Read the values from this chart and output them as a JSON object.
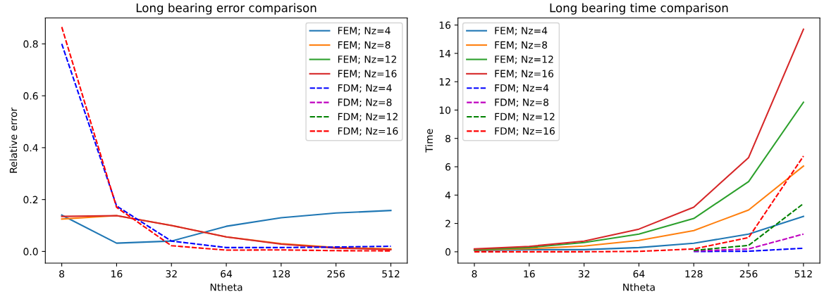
{
  "chart_data": [
    {
      "type": "line",
      "title": "Long bearing error comparison",
      "xlabel": "Ntheta",
      "ylabel": "Relative error",
      "x": [
        8,
        16,
        32,
        64,
        128,
        256,
        512
      ],
      "log": "x",
      "xlim": [
        6.5,
        630
      ],
      "xticks": [
        8,
        16,
        32,
        64,
        128,
        256,
        512
      ],
      "ylim": [
        -0.045,
        0.9
      ],
      "yticks": [
        {
          "value": 0,
          "label": "0.0"
        },
        0.2,
        0.4,
        0.6,
        0.8
      ],
      "legend": "top right",
      "grid": false,
      "series": [
        {
          "name": "FEM; Nz=4",
          "color": "#1f77b4",
          "line_style": "solid",
          "values": [
            0.14,
            0.032,
            0.04,
            0.097,
            0.13,
            0.148,
            0.158
          ]
        },
        {
          "name": "FEM; Nz=8",
          "color": "#ff7f0e",
          "line_style": "solid",
          "values": [
            0.125,
            0.138,
            0.1,
            0.056,
            0.03,
            0.015,
            0.01
          ]
        },
        {
          "name": "FEM; Nz=12",
          "color": "#2ca02c",
          "line_style": "solid",
          "values": [
            null,
            null,
            null,
            null,
            null,
            null,
            null
          ]
        },
        {
          "name": "FEM; Nz=16",
          "color": "#d62728",
          "line_style": "solid",
          "values": [
            0.135,
            0.138,
            0.1,
            0.056,
            0.028,
            0.013,
            0.007
          ]
        },
        {
          "name": "FDM; Nz=4",
          "color": "#0000ff",
          "line_style": "dashed",
          "values": [
            0.8,
            0.175,
            0.04,
            0.015,
            0.015,
            0.017,
            0.02
          ]
        },
        {
          "name": "FDM; Nz=8",
          "color": "#bf00bf",
          "line_style": "dashed",
          "values": [
            null,
            null,
            null,
            null,
            null,
            null,
            null
          ]
        },
        {
          "name": "FDM; Nz=12",
          "color": "#008000",
          "line_style": "dashed",
          "values": [
            null,
            null,
            null,
            null,
            null,
            null,
            null
          ]
        },
        {
          "name": "FDM; Nz=16",
          "color": "#ff0000",
          "line_style": "dashed",
          "values": [
            0.865,
            0.17,
            0.022,
            0.005,
            0.006,
            0.003,
            0.002
          ]
        }
      ]
    },
    {
      "type": "line",
      "title": "Long bearing time comparison",
      "xlabel": "Ntheta",
      "ylabel": "Time",
      "x": [
        8,
        16,
        32,
        64,
        128,
        256,
        512
      ],
      "log": "x",
      "xlim": [
        6.5,
        630
      ],
      "xticks": [
        8,
        16,
        32,
        64,
        128,
        256,
        512
      ],
      "ylim": [
        -0.8,
        16.5
      ],
      "yticks": [
        0,
        2,
        4,
        6,
        8,
        10,
        12,
        14,
        16
      ],
      "legend": "top left",
      "grid": false,
      "series": [
        {
          "name": "FEM; Nz=4",
          "color": "#1f77b4",
          "line_style": "solid",
          "values": [
            0.08,
            0.15,
            0.15,
            0.3,
            0.6,
            1.25,
            2.5
          ]
        },
        {
          "name": "FEM; Nz=8",
          "color": "#ff7f0e",
          "line_style": "solid",
          "values": [
            0.12,
            0.22,
            0.4,
            0.8,
            1.5,
            2.95,
            6.05
          ]
        },
        {
          "name": "FEM; Nz=12",
          "color": "#2ca02c",
          "line_style": "solid",
          "values": [
            0.15,
            0.3,
            0.65,
            1.25,
            2.35,
            4.95,
            10.55
          ]
        },
        {
          "name": "FEM; Nz=16",
          "color": "#d62728",
          "line_style": "solid",
          "values": [
            0.2,
            0.38,
            0.75,
            1.6,
            3.15,
            6.65,
            15.7
          ]
        },
        {
          "name": "FDM; Nz=4",
          "color": "#0000ff",
          "line_style": "dashed",
          "values": [
            null,
            null,
            null,
            null,
            0.02,
            0.04,
            0.25
          ]
        },
        {
          "name": "FDM; Nz=8",
          "color": "#bf00bf",
          "line_style": "dashed",
          "values": [
            null,
            null,
            null,
            null,
            0.05,
            0.2,
            1.25
          ]
        },
        {
          "name": "FDM; Nz=12",
          "color": "#008000",
          "line_style": "dashed",
          "values": [
            null,
            null,
            null,
            null,
            0.1,
            0.45,
            3.4
          ]
        },
        {
          "name": "FDM; Nz=16",
          "color": "#ff0000",
          "line_style": "dashed",
          "values": [
            0,
            0,
            0,
            0.03,
            0.2,
            1.0,
            6.75
          ]
        }
      ]
    }
  ]
}
